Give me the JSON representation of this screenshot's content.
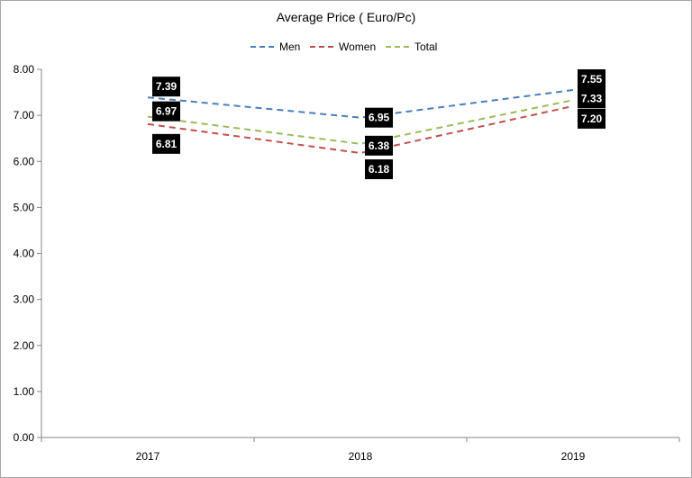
{
  "chart_data": {
    "type": "line",
    "title": "Average Price ( Euro/Pc)",
    "categories": [
      "2017",
      "2018",
      "2019"
    ],
    "ylim": [
      0,
      8
    ],
    "y_ticks": [
      "0.00",
      "1.00",
      "2.00",
      "3.00",
      "4.00",
      "5.00",
      "6.00",
      "7.00",
      "8.00"
    ],
    "grid": false,
    "legend_position": "top",
    "line_style": "dashed",
    "series": [
      {
        "name": "Men",
        "color": "#4a7ebb",
        "values": [
          7.39,
          6.95,
          7.55
        ],
        "labels": [
          "7.39",
          "6.95",
          "7.55"
        ]
      },
      {
        "name": "Women",
        "color": "#c0504d",
        "values": [
          6.81,
          6.18,
          7.2
        ],
        "labels": [
          "6.81",
          "6.18",
          "7.20"
        ]
      },
      {
        "name": "Total",
        "color": "#9bbb59",
        "values": [
          6.97,
          6.38,
          7.33
        ],
        "labels": [
          "6.97",
          "6.38",
          "7.33"
        ]
      }
    ]
  }
}
